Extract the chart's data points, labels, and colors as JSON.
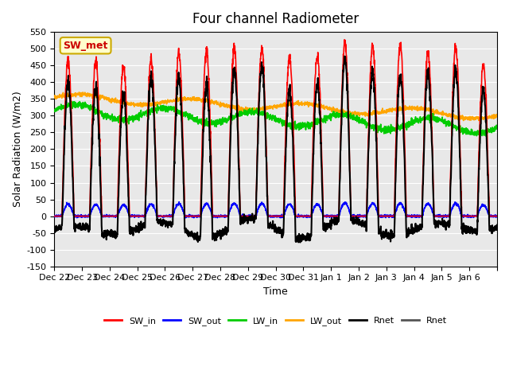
{
  "title": "Four channel Radiometer",
  "xlabel": "Time",
  "ylabel": "Solar Radiation (W/m2)",
  "ylim": [
    -150,
    550
  ],
  "yticks": [
    -150,
    -100,
    -50,
    0,
    50,
    100,
    150,
    200,
    250,
    300,
    350,
    400,
    450,
    500,
    550
  ],
  "x_labels": [
    "Dec 22",
    "Dec 23",
    "Dec 24",
    "Dec 25",
    "Dec 26",
    "Dec 27",
    "Dec 28",
    "Dec 29",
    "Dec 30",
    "Dec 31",
    "Jan 1",
    "Jan 2",
    "Jan 3",
    "Jan 4",
    "Jan 5",
    "Jan 6",
    ""
  ],
  "annotation_text": "SW_met",
  "annotation_fc": "#FFFFCC",
  "annotation_ec": "#CCAA00",
  "annotation_tc": "#CC0000",
  "bg_color": "#E8E8E8",
  "legend_entries": [
    "SW_in",
    "SW_out",
    "LW_in",
    "LW_out",
    "Rnet",
    "Rnet"
  ],
  "legend_colors": [
    "#FF0000",
    "#0000FF",
    "#00CC00",
    "#FFA500",
    "#000000",
    "#555555"
  ],
  "line_widths": [
    1.2,
    1.2,
    1.2,
    1.2,
    1.5,
    1.5
  ],
  "num_days": 16,
  "seed": 42
}
